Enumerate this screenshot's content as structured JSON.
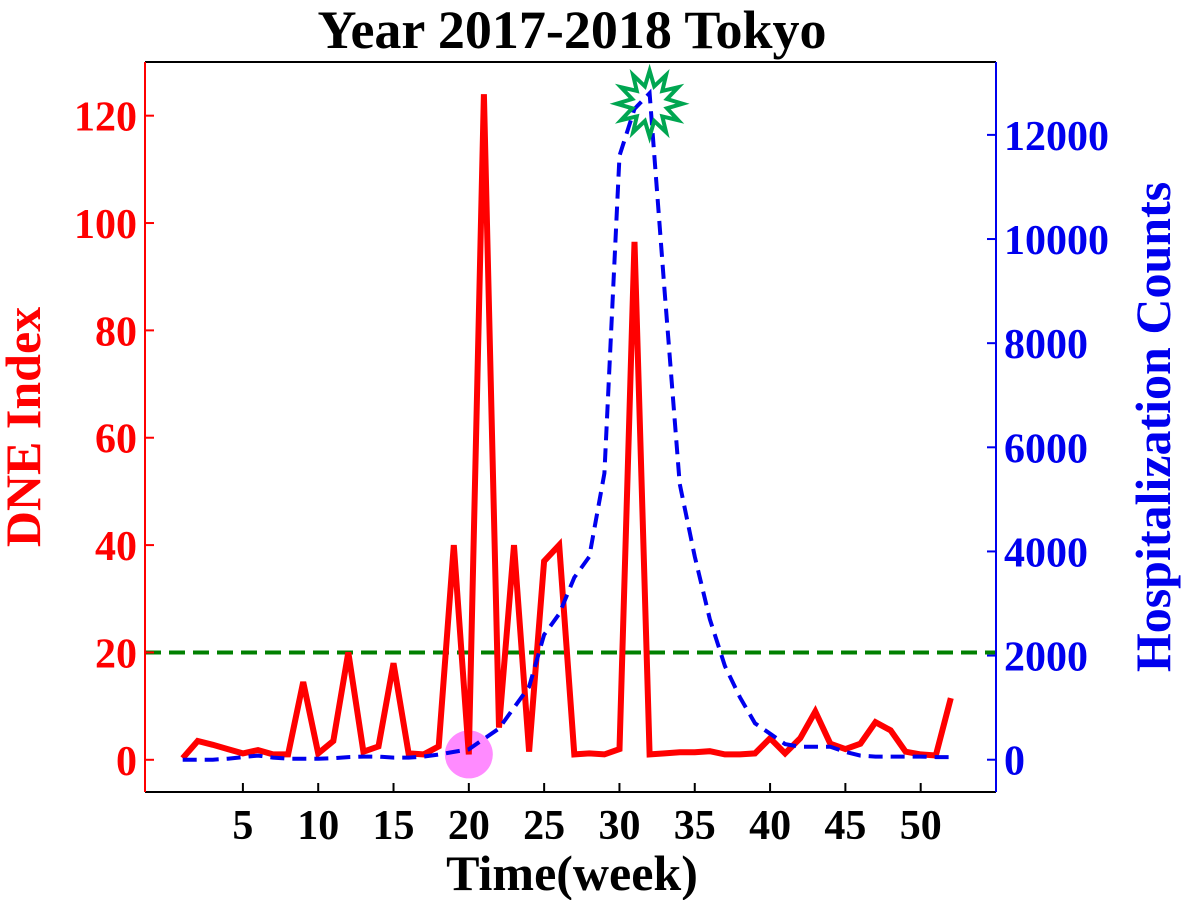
{
  "chart_data": {
    "type": "line",
    "title": "Year 2017-2018 Tokyo",
    "xlabel": "Time(week)",
    "ylabel_left": "DNE  Index",
    "ylabel_right": "Hospitalization Counts",
    "xlim": [
      -1.5,
      55
    ],
    "ylim_left": [
      -6,
      130
    ],
    "ylim_right": [
      -620,
      13400
    ],
    "x_ticks": [
      5,
      10,
      15,
      20,
      25,
      30,
      35,
      40,
      45,
      50
    ],
    "y_ticks_left": [
      0,
      20,
      40,
      60,
      80,
      100,
      120
    ],
    "y_ticks_right": [
      0,
      2000,
      4000,
      6000,
      8000,
      10000,
      12000
    ],
    "grid": false,
    "colors": {
      "dne": "#ff0000",
      "hospitalization": "#0000ee",
      "threshold": "#008000",
      "early_warning_marker": "#ff77ff",
      "peak_marker": "#00a651",
      "axis": "#000000",
      "left_axis": "#ff0000",
      "right_axis": "#0000ee"
    },
    "x": [
      1,
      2,
      3,
      4,
      5,
      6,
      7,
      8,
      9,
      10,
      11,
      12,
      13,
      14,
      15,
      16,
      17,
      18,
      19,
      20,
      21,
      22,
      23,
      24,
      25,
      26,
      27,
      28,
      29,
      30,
      31,
      32,
      33,
      34,
      35,
      36,
      37,
      38,
      39,
      40,
      41,
      42,
      43,
      44,
      45,
      46,
      47,
      48,
      49,
      50,
      51,
      52
    ],
    "series": [
      {
        "name": "DNE  Index",
        "axis": "left",
        "style": "solid",
        "values": [
          0.3,
          3.5,
          2.8,
          2.0,
          1.2,
          1.8,
          1.0,
          1.0,
          14.5,
          1.2,
          3.5,
          20.0,
          1.5,
          2.5,
          18.0,
          1.2,
          1.0,
          2.5,
          40.0,
          1.0,
          124.0,
          6.0,
          40.0,
          1.5,
          37.0,
          40.0,
          1.0,
          1.2,
          1.0,
          2.0,
          96.5,
          1.0,
          1.2,
          1.4,
          1.4,
          1.6,
          1.0,
          1.0,
          1.2,
          4.0,
          1.2,
          4.0,
          9.0,
          3.0,
          2.0,
          3.0,
          7.0,
          5.5,
          1.5,
          1.0,
          0.8,
          11.5
        ]
      },
      {
        "name": "Hospitalization Counts",
        "axis": "right",
        "style": "dashed",
        "values": [
          0,
          0,
          0,
          20,
          50,
          80,
          40,
          20,
          20,
          20,
          30,
          50,
          60,
          60,
          40,
          40,
          60,
          100,
          150,
          200,
          400,
          600,
          1000,
          1400,
          2400,
          2800,
          3500,
          3900,
          5500,
          11600,
          12500,
          12800,
          9000,
          5300,
          3900,
          2700,
          1800,
          1200,
          700,
          500,
          300,
          250,
          250,
          250,
          150,
          80,
          60,
          60,
          60,
          60,
          50,
          50
        ]
      }
    ],
    "threshold_line": {
      "axis": "left",
      "value": 20,
      "style": "dashed"
    },
    "markers": [
      {
        "kind": "circle",
        "x": 20,
        "axis": "left",
        "y": 1.0
      },
      {
        "kind": "star",
        "x": 32,
        "axis": "right",
        "y": 12600
      }
    ]
  }
}
